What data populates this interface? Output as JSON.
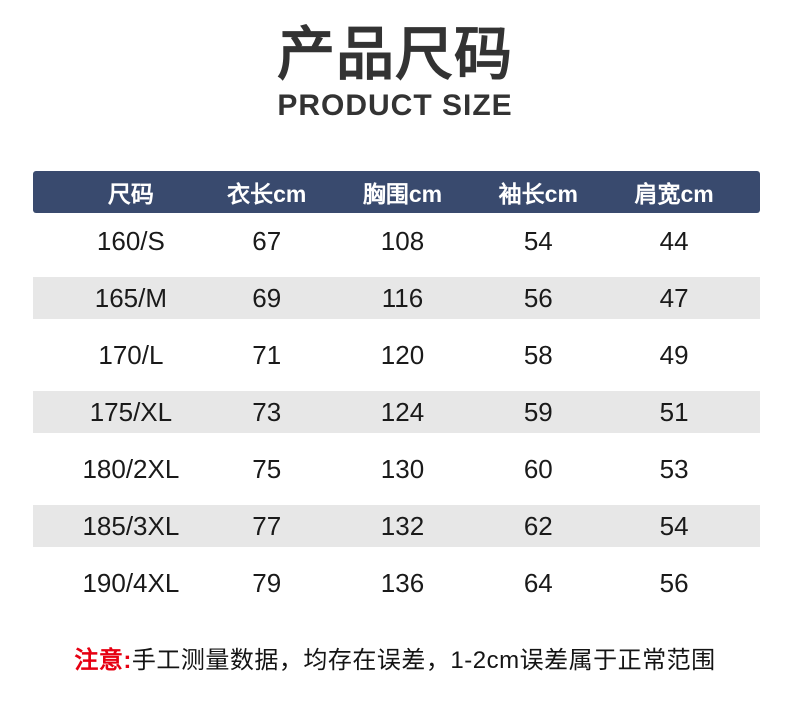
{
  "page": {
    "title": "产品尺码",
    "subtitle": "PRODUCT SIZE"
  },
  "chart_data": {
    "type": "table",
    "title": "产品尺码",
    "subtitle": "PRODUCT SIZE",
    "columns": [
      "尺码",
      "衣长cm",
      "胸围cm",
      "袖长cm",
      "肩宽cm"
    ],
    "rows": [
      [
        "160/S",
        "67",
        "108",
        "54",
        "44"
      ],
      [
        "165/M",
        "69",
        "116",
        "56",
        "47"
      ],
      [
        "170/L",
        "71",
        "120",
        "58",
        "49"
      ],
      [
        "175/XL",
        "73",
        "124",
        "59",
        "51"
      ],
      [
        "180/2XL",
        "75",
        "130",
        "60",
        "53"
      ],
      [
        "185/3XL",
        "77",
        "132",
        "62",
        "54"
      ],
      [
        "190/4XL",
        "79",
        "136",
        "64",
        "56"
      ]
    ],
    "note": {
      "warn": "注意:",
      "rest": "手工测量数据，均存在误差，1-2cm误差属于正常范围"
    }
  },
  "colors": {
    "header_bg": "#394A6E",
    "stripe": "#E7E7E7",
    "warn_red": "#E60012",
    "title_text": "#333333",
    "body_text": "#1A1A1A"
  }
}
